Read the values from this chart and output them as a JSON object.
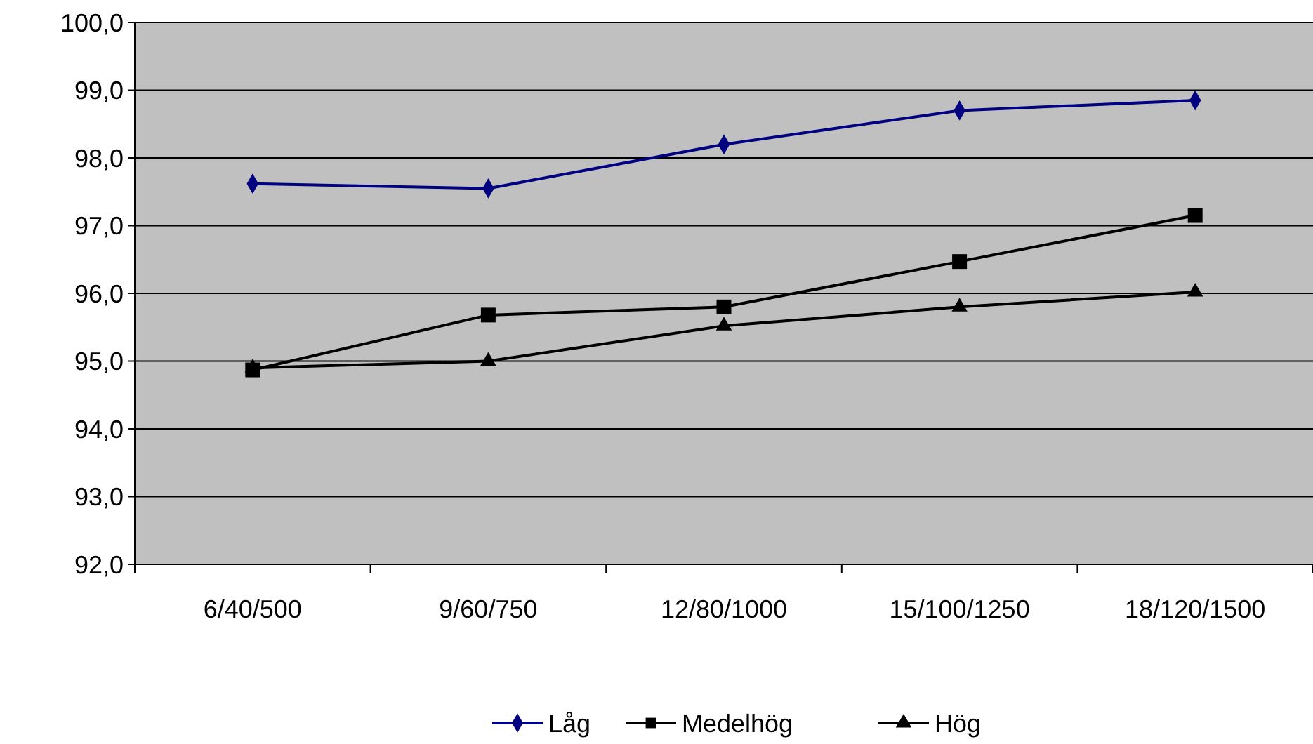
{
  "chart_data": {
    "type": "line",
    "categories": [
      "6/40/500",
      "9/60/750",
      "12/80/1000",
      "15/100/1250",
      "18/120/1500"
    ],
    "series": [
      {
        "name": "Låg",
        "color": "#000080",
        "marker": "diamond",
        "values": [
          97.62,
          97.55,
          98.2,
          98.7,
          98.85
        ]
      },
      {
        "name": "Medelhög",
        "color": "#000000",
        "marker": "square",
        "values": [
          94.87,
          95.68,
          95.8,
          96.47,
          97.15
        ]
      },
      {
        "name": "Hög",
        "color": "#000000",
        "marker": "triangle",
        "values": [
          94.9,
          95.0,
          95.52,
          95.8,
          96.02
        ]
      }
    ],
    "ylim": [
      92,
      100
    ],
    "yticks": [
      {
        "value": 92,
        "label": "92,0"
      },
      {
        "value": 93,
        "label": "93,0"
      },
      {
        "value": 94,
        "label": "94,0"
      },
      {
        "value": 95,
        "label": "95,0"
      },
      {
        "value": 96,
        "label": "96,0"
      },
      {
        "value": 97,
        "label": "97,0"
      },
      {
        "value": 98,
        "label": "98,0"
      },
      {
        "value": 99,
        "label": "99,0"
      },
      {
        "value": 100,
        "label": "100,0"
      }
    ],
    "grid": "y",
    "legend": "bottom",
    "line_style": "solid"
  }
}
